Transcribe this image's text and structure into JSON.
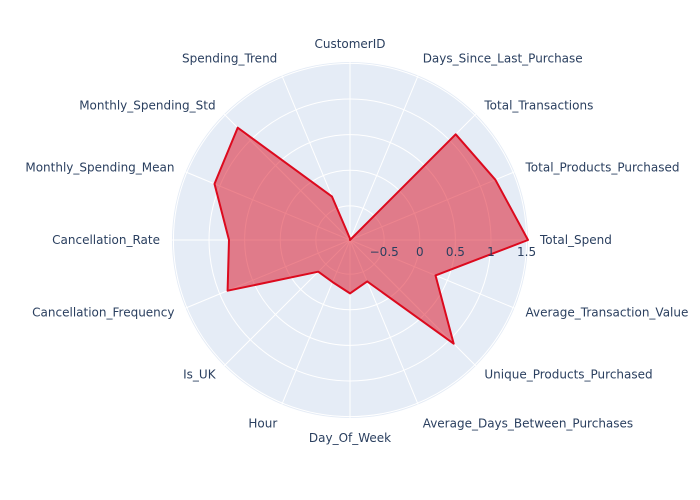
{
  "chart_data": {
    "type": "radar",
    "title": "",
    "categories": [
      "CustomerID",
      "Days_Since_Last_Purchase",
      "Total_Transactions",
      "Total_Products_Purchased",
      "Total_Spend",
      "Average_Transaction_Value",
      "Unique_Products_Purchased",
      "Average_Days_Between_Purchases",
      "Day_Of_Week",
      "Hour",
      "Is_UK",
      "Cancellation_Frequency",
      "Cancellation_Rate",
      "Monthly_Spending_Mean",
      "Monthly_Spending_Std",
      "Spending_Trend"
    ],
    "series": [
      {
        "name": "",
        "values": [
          -0.96,
          -0.98,
          1.12,
          1.23,
          1.52,
          0.32,
          1.08,
          -0.35,
          -0.23,
          -0.34,
          -0.35,
          0.88,
          0.72,
          1.08,
          1.25,
          -0.32
        ]
      }
    ],
    "radial_axis": {
      "range": [
        -0.98,
        1.52
      ],
      "tick_values": [
        -0.5,
        0,
        0.5,
        1,
        1.5
      ],
      "tick_labels": [
        "−0.5",
        "0",
        "0.5",
        "1",
        "1.5"
      ]
    },
    "grid": true,
    "legend": "none",
    "colors": {
      "polar_background": "#e5ecf6",
      "grid_line": "#ffffff",
      "line": "#dc0a1e",
      "fill": "#dc0a1e",
      "text": "#2a3f5f"
    }
  }
}
